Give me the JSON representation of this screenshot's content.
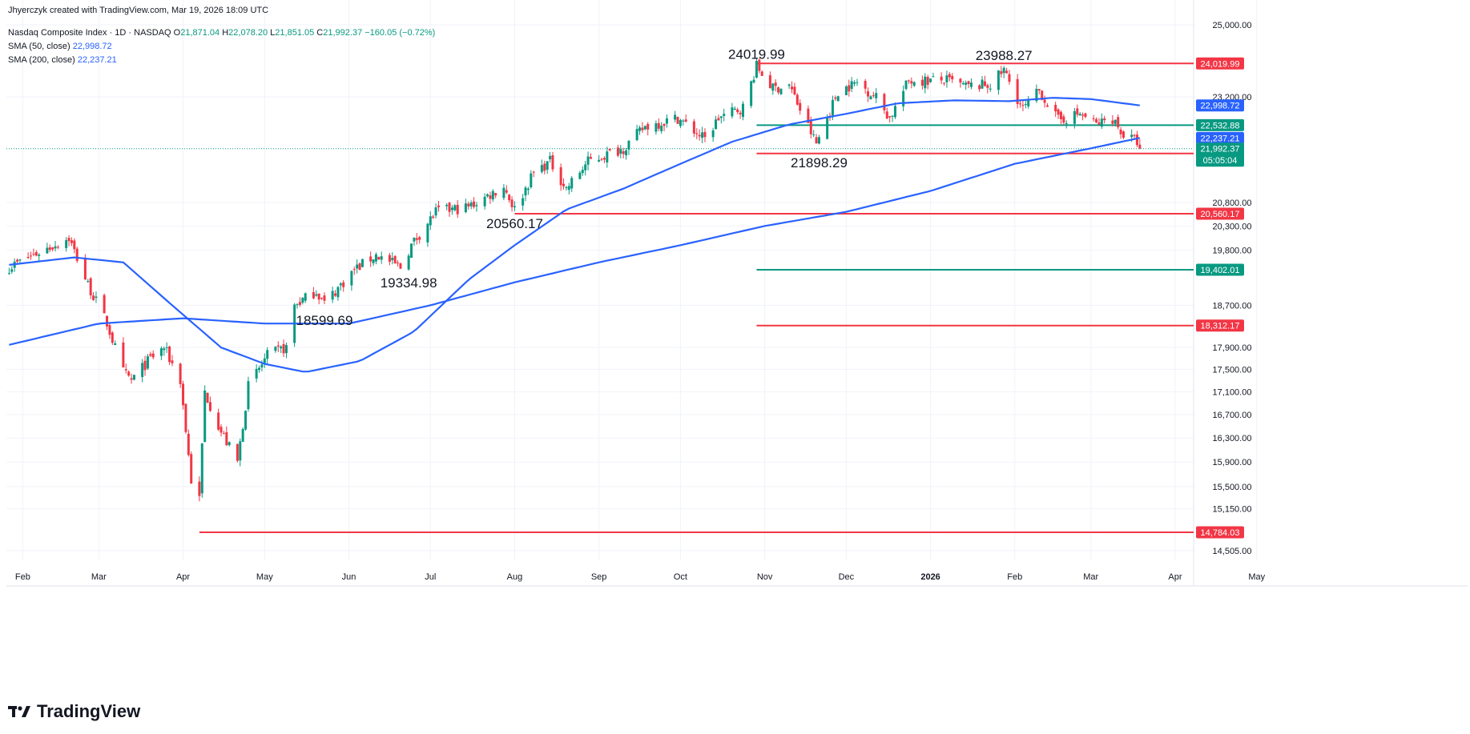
{
  "header": {
    "credit": "Jhyerczyk created with TradingView.com, Mar 19, 2026 18:09 UTC",
    "symbol": "Nasdaq Composite Index · 1D · NASDAQ",
    "open_label": "O",
    "open": "21,871.04",
    "high_label": "H",
    "high": "22,078.20",
    "low_label": "L",
    "low": "21,851.05",
    "close_label": "C",
    "close": "21,992.37",
    "change": "−160.05 (−0.72%)",
    "sma50_label": "SMA (50, close)",
    "sma50_value": "22,998.72",
    "sma200_label": "SMA (200, close)",
    "sma200_value": "22,237.21"
  },
  "brand": {
    "name": "TradingView"
  },
  "colors": {
    "up": "#089981",
    "down": "#f23645",
    "sma": "#2962ff",
    "resistance": "#f23645",
    "support": "#089981",
    "grid": "#f0f3fa"
  },
  "chart_data": {
    "type": "candlestick",
    "title": "Nasdaq Composite Index · 1D · NASDAQ",
    "y_axis_ticks": [
      25000,
      23200,
      20800,
      20300,
      19800,
      18700,
      17900,
      17500,
      17100,
      16700,
      16300,
      15900,
      15500,
      15150,
      14505
    ],
    "y_axis_tick_labels": [
      "25,000.00",
      "23,200.00",
      "20,800.00",
      "20,300.00",
      "19,800.00",
      "18,700.00",
      "17,900.00",
      "17,500.00",
      "17,100.00",
      "16,700.00",
      "16,300.00",
      "15,900.00",
      "15,500.00",
      "15,150.00",
      "14,505.00"
    ],
    "x_axis_ticks": [
      "Feb",
      "Mar",
      "Apr",
      "May",
      "Jun",
      "Jul",
      "Aug",
      "Sep",
      "Oct",
      "Nov",
      "Dec",
      "2026",
      "Feb",
      "Mar",
      "Apr",
      "May"
    ],
    "x_axis_tick_dates": [
      "2025-02-01",
      "2025-03-01",
      "2025-04-01",
      "2025-05-01",
      "2025-06-01",
      "2025-07-01",
      "2025-08-01",
      "2025-09-01",
      "2025-10-01",
      "2025-11-01",
      "2025-12-01",
      "2026-01-01",
      "2026-02-01",
      "2026-03-01",
      "2026-04-01",
      "2026-05-01"
    ],
    "date_range": [
      "2025-01-27",
      "2026-05-29"
    ],
    "last_bar_date": "2026-03-19",
    "horizontal_levels": [
      {
        "value": 24019.99,
        "label": "24,019.99",
        "color": "resistance",
        "start": "2025-10-29"
      },
      {
        "value": 22532.88,
        "label": "22,532.88",
        "color": "support",
        "start": "2025-10-29"
      },
      {
        "value": 21881.82,
        "label": "21,881.82",
        "color": "resistance",
        "start": "2025-10-29"
      },
      {
        "value": 20560.17,
        "label": "20,560.17",
        "color": "resistance",
        "start": "2025-08-01"
      },
      {
        "value": 19402.01,
        "label": "19,402.01",
        "color": "support",
        "start": "2025-10-29"
      },
      {
        "value": 18312.17,
        "label": "18,312.17",
        "color": "resistance",
        "start": "2025-10-29"
      },
      {
        "value": 14784.03,
        "label": "14,784.03",
        "color": "resistance",
        "start": "2025-04-07"
      }
    ],
    "price_tags": [
      {
        "value": 22998.72,
        "label": "22,998.72",
        "kind": "sma"
      },
      {
        "value": 22237.21,
        "label": "22,237.21",
        "kind": "sma"
      },
      {
        "value": 21992.37,
        "label": "21,992.37",
        "sublabel": "05:05:04",
        "kind": "last"
      }
    ],
    "annotations": [
      {
        "text": "24019.99",
        "date": "2025-10-29",
        "value": 24019.99,
        "pos": "above"
      },
      {
        "text": "23988.27",
        "date": "2026-01-28",
        "value": 23988.27,
        "pos": "above"
      },
      {
        "text": "21898.29",
        "date": "2025-11-21",
        "value": 21898.29,
        "pos": "below"
      },
      {
        "text": "20560.17",
        "date": "2025-08-01",
        "value": 20560.17,
        "pos": "below"
      },
      {
        "text": "19334.98",
        "date": "2025-06-23",
        "value": 19334.98,
        "pos": "below"
      },
      {
        "text": "18599.69",
        "date": "2025-05-23",
        "value": 18599.69,
        "pos": "below"
      }
    ],
    "close_path": [
      [
        "2025-01-27",
        19450
      ],
      [
        "2025-02-05",
        19700
      ],
      [
        "2025-02-18",
        20050
      ],
      [
        "2025-02-25",
        19100
      ],
      [
        "2025-03-04",
        18350
      ],
      [
        "2025-03-10",
        17450
      ],
      [
        "2025-03-13",
        17300
      ],
      [
        "2025-03-20",
        17700
      ],
      [
        "2025-03-25",
        17900
      ],
      [
        "2025-03-31",
        17300
      ],
      [
        "2025-04-04",
        15600
      ],
      [
        "2025-04-07",
        15300
      ],
      [
        "2025-04-09",
        17100
      ],
      [
        "2025-04-15",
        16400
      ],
      [
        "2025-04-21",
        15900
      ],
      [
        "2025-04-25",
        17200
      ],
      [
        "2025-05-02",
        17750
      ],
      [
        "2025-05-09",
        17900
      ],
      [
        "2025-05-12",
        18700
      ],
      [
        "2025-05-20",
        18980
      ],
      [
        "2025-05-23",
        18740
      ],
      [
        "2025-06-03",
        19400
      ],
      [
        "2025-06-11",
        19700
      ],
      [
        "2025-06-20",
        19450
      ],
      [
        "2025-06-24",
        19900
      ],
      [
        "2025-07-03",
        20600
      ],
      [
        "2025-07-15",
        20700
      ],
      [
        "2025-07-28",
        21150
      ],
      [
        "2025-08-01",
        20650
      ],
      [
        "2025-08-08",
        21450
      ],
      [
        "2025-08-14",
        21700
      ],
      [
        "2025-08-20",
        21100
      ],
      [
        "2025-08-28",
        21700
      ],
      [
        "2025-09-10",
        22000
      ],
      [
        "2025-09-18",
        22500
      ],
      [
        "2025-09-30",
        22700
      ],
      [
        "2025-10-10",
        22200
      ],
      [
        "2025-10-15",
        22700
      ],
      [
        "2025-10-24",
        22950
      ],
      [
        "2025-10-29",
        23950
      ],
      [
        "2025-11-04",
        23400
      ],
      [
        "2025-11-10",
        23500
      ],
      [
        "2025-11-14",
        22900
      ],
      [
        "2025-11-20",
        22100
      ],
      [
        "2025-11-28",
        23350
      ],
      [
        "2025-12-05",
        23550
      ],
      [
        "2025-12-12",
        23200
      ],
      [
        "2025-12-17",
        22700
      ],
      [
        "2025-12-24",
        23600
      ],
      [
        "2026-01-07",
        23600
      ],
      [
        "2026-01-14",
        23450
      ],
      [
        "2026-01-23",
        23500
      ],
      [
        "2026-01-28",
        23850
      ],
      [
        "2026-02-04",
        22900
      ],
      [
        "2026-02-10",
        23350
      ],
      [
        "2026-02-17",
        22650
      ],
      [
        "2026-02-25",
        22800
      ],
      [
        "2026-03-03",
        22550
      ],
      [
        "2026-03-09",
        22700
      ],
      [
        "2026-03-13",
        22300
      ],
      [
        "2026-03-18",
        22150
      ],
      [
        "2026-03-19",
        21992.37
      ]
    ],
    "sma50_path": [
      [
        "2025-01-27",
        19500
      ],
      [
        "2025-02-20",
        19650
      ],
      [
        "2025-03-10",
        19550
      ],
      [
        "2025-03-28",
        18700
      ],
      [
        "2025-04-15",
        17900
      ],
      [
        "2025-05-01",
        17600
      ],
      [
        "2025-05-16",
        17450
      ],
      [
        "2025-06-05",
        17650
      ],
      [
        "2025-06-25",
        18200
      ],
      [
        "2025-07-15",
        19200
      ],
      [
        "2025-08-01",
        19900
      ],
      [
        "2025-08-20",
        20650
      ],
      [
        "2025-09-10",
        21100
      ],
      [
        "2025-10-01",
        21650
      ],
      [
        "2025-10-20",
        22150
      ],
      [
        "2025-11-10",
        22550
      ],
      [
        "2025-12-01",
        22800
      ],
      [
        "2025-12-20",
        23050
      ],
      [
        "2026-01-10",
        23120
      ],
      [
        "2026-01-30",
        23100
      ],
      [
        "2026-02-15",
        23180
      ],
      [
        "2026-03-01",
        23150
      ],
      [
        "2026-03-19",
        22998.72
      ]
    ],
    "sma200_path": [
      [
        "2025-01-27",
        17950
      ],
      [
        "2025-03-01",
        18350
      ],
      [
        "2025-04-01",
        18450
      ],
      [
        "2025-05-01",
        18350
      ],
      [
        "2025-06-01",
        18350
      ],
      [
        "2025-07-01",
        18700
      ],
      [
        "2025-08-01",
        19150
      ],
      [
        "2025-09-01",
        19550
      ],
      [
        "2025-10-01",
        19900
      ],
      [
        "2025-11-01",
        20300
      ],
      [
        "2025-12-01",
        20600
      ],
      [
        "2026-01-01",
        21050
      ],
      [
        "2026-02-01",
        21650
      ],
      [
        "2026-03-01",
        22000
      ],
      [
        "2026-03-19",
        22237.21
      ]
    ]
  }
}
